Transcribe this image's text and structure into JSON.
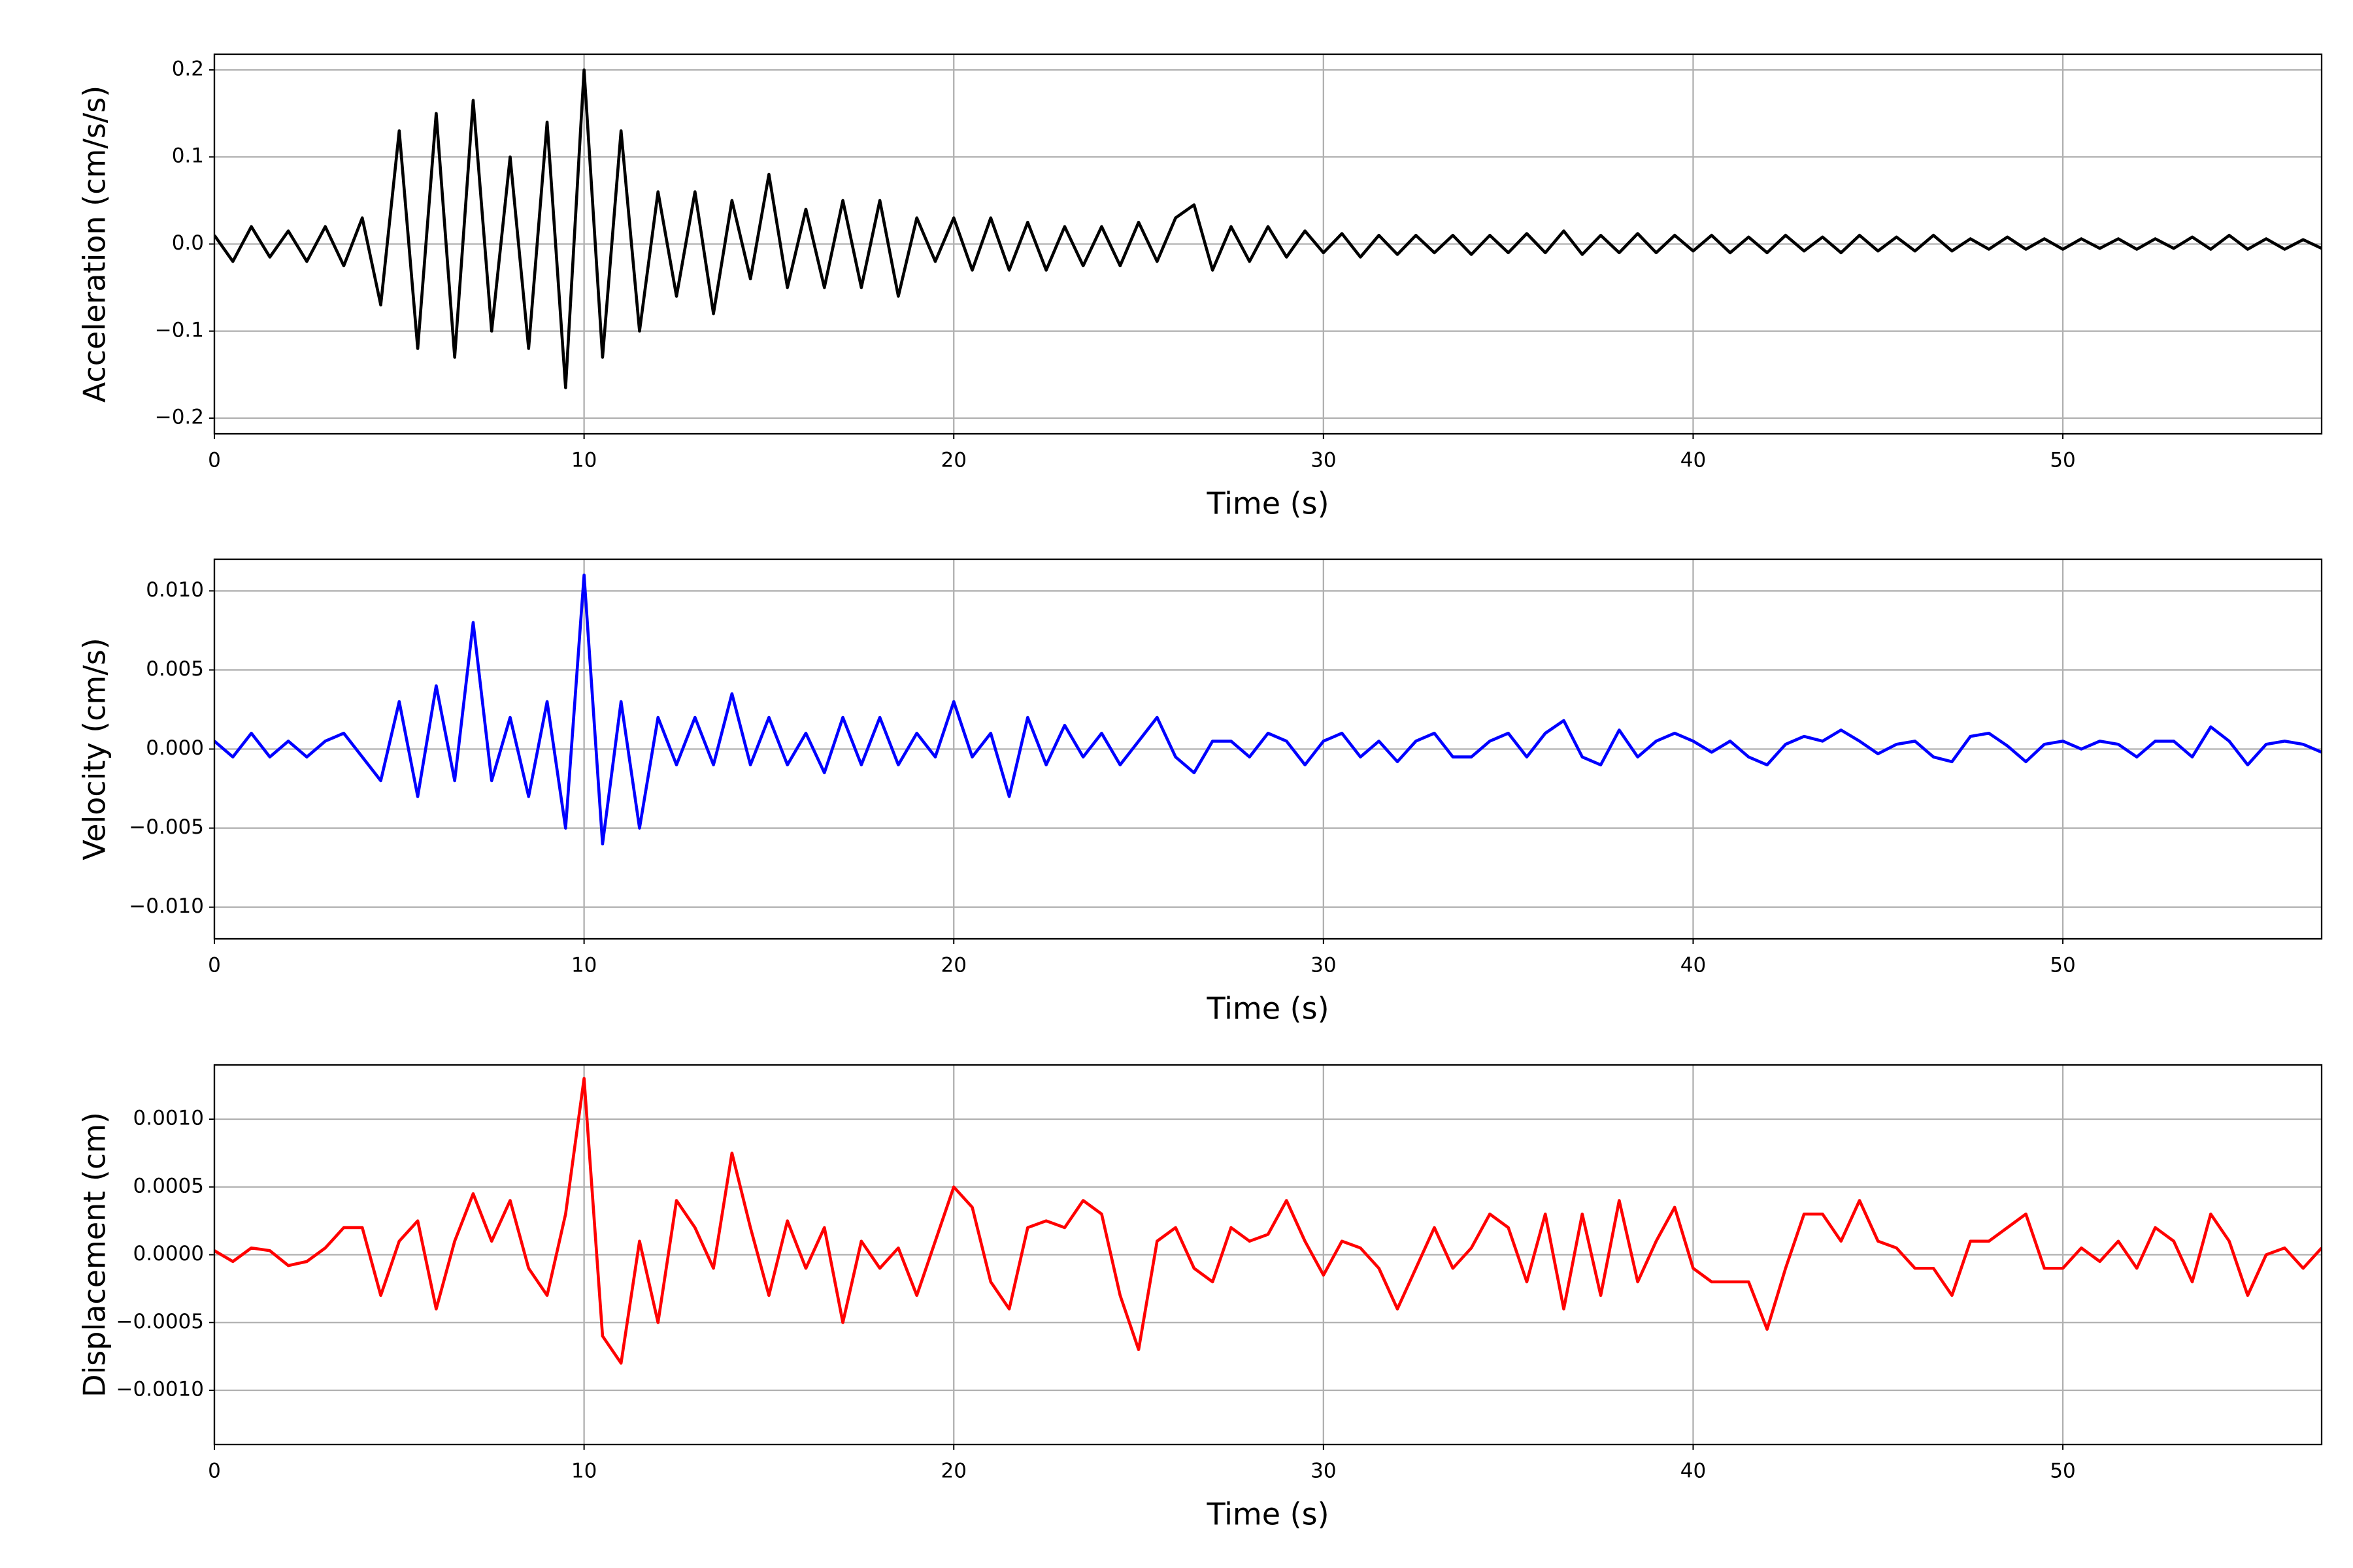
{
  "chart_data": [
    {
      "type": "line",
      "x_label": "Time (s)",
      "y_label": "Acceleration (cm/s/s)",
      "grid": true,
      "xlim": [
        0,
        57
      ],
      "xticks": [
        0,
        10,
        20,
        30,
        40,
        50
      ],
      "ylim": [
        -0.218,
        0.218
      ],
      "yticks": [
        {
          "value": -0.2,
          "label": "−0.2"
        },
        {
          "value": -0.1,
          "label": "−0.1"
        },
        {
          "value": 0,
          "label": "0.0"
        },
        {
          "value": 0.1,
          "label": "0.1"
        },
        {
          "value": 0.2,
          "label": "0.2"
        }
      ],
      "x": [
        0,
        0.5,
        1,
        1.5,
        2,
        2.5,
        3,
        3.5,
        4,
        4.5,
        5,
        5.5,
        6,
        6.5,
        7,
        7.5,
        8,
        8.5,
        9,
        9.5,
        10,
        10.5,
        11,
        11.5,
        12,
        12.5,
        13,
        13.5,
        14,
        14.5,
        15,
        15.5,
        16,
        16.5,
        17,
        17.5,
        18,
        18.5,
        19,
        19.5,
        20,
        20.5,
        21,
        21.5,
        22,
        22.5,
        23,
        23.5,
        24,
        24.5,
        25,
        25.5,
        26,
        26.5,
        27,
        27.5,
        28,
        28.5,
        29,
        29.5,
        30,
        30.5,
        31,
        31.5,
        32,
        32.5,
        33,
        33.5,
        34,
        34.5,
        35,
        35.5,
        36,
        36.5,
        37,
        37.5,
        38,
        38.5,
        39,
        39.5,
        40,
        40.5,
        41,
        41.5,
        42,
        42.5,
        43,
        43.5,
        44,
        44.5,
        45,
        45.5,
        46,
        46.5,
        47,
        47.5,
        48,
        48.5,
        49,
        49.5,
        50,
        50.5,
        51,
        51.5,
        52,
        52.5,
        53,
        53.5,
        54,
        54.5,
        55,
        55.5,
        56,
        56.5,
        57
      ],
      "series": [
        {
          "color": "#000000",
          "values": [
            0.01,
            -0.02,
            0.02,
            -0.015,
            0.015,
            -0.02,
            0.02,
            -0.025,
            0.03,
            -0.07,
            0.13,
            -0.12,
            0.15,
            -0.13,
            0.165,
            -0.1,
            0.1,
            -0.12,
            0.14,
            -0.165,
            0.2,
            -0.13,
            0.13,
            -0.1,
            0.06,
            -0.06,
            0.06,
            -0.08,
            0.05,
            -0.04,
            0.08,
            -0.05,
            0.04,
            -0.05,
            0.05,
            -0.05,
            0.05,
            -0.06,
            0.03,
            -0.02,
            0.03,
            -0.03,
            0.03,
            -0.03,
            0.025,
            -0.03,
            0.02,
            -0.025,
            0.02,
            -0.025,
            0.025,
            -0.02,
            0.03,
            0.045,
            -0.03,
            0.02,
            -0.02,
            0.02,
            -0.015,
            0.015,
            -0.01,
            0.012,
            -0.015,
            0.01,
            -0.012,
            0.01,
            -0.01,
            0.01,
            -0.012,
            0.01,
            -0.01,
            0.012,
            -0.01,
            0.015,
            -0.012,
            0.01,
            -0.01,
            0.012,
            -0.01,
            0.01,
            -0.008,
            0.01,
            -0.01,
            0.008,
            -0.01,
            0.01,
            -0.008,
            0.008,
            -0.01,
            0.01,
            -0.008,
            0.008,
            -0.008,
            0.01,
            -0.008,
            0.006,
            -0.006,
            0.008,
            -0.006,
            0.006,
            -0.006,
            0.006,
            -0.005,
            0.006,
            -0.006,
            0.006,
            -0.005,
            0.008,
            -0.006,
            0.01,
            -0.006,
            0.006,
            -0.006,
            0.005,
            -0.005
          ]
        }
      ]
    },
    {
      "type": "line",
      "x_label": "Time (s)",
      "y_label": "Velocity (cm/s)",
      "grid": true,
      "xlim": [
        0,
        57
      ],
      "xticks": [
        0,
        10,
        20,
        30,
        40,
        50
      ],
      "ylim": [
        -0.012,
        0.012
      ],
      "yticks": [
        {
          "value": -0.01,
          "label": "−0.010"
        },
        {
          "value": -0.005,
          "label": "−0.005"
        },
        {
          "value": 0,
          "label": "0.000"
        },
        {
          "value": 0.005,
          "label": "0.005"
        },
        {
          "value": 0.01,
          "label": "0.010"
        }
      ],
      "x": [
        0,
        0.5,
        1,
        1.5,
        2,
        2.5,
        3,
        3.5,
        4,
        4.5,
        5,
        5.5,
        6,
        6.5,
        7,
        7.5,
        8,
        8.5,
        9,
        9.5,
        10,
        10.5,
        11,
        11.5,
        12,
        12.5,
        13,
        13.5,
        14,
        14.5,
        15,
        15.5,
        16,
        16.5,
        17,
        17.5,
        18,
        18.5,
        19,
        19.5,
        20,
        20.5,
        21,
        21.5,
        22,
        22.5,
        23,
        23.5,
        24,
        24.5,
        25,
        25.5,
        26,
        26.5,
        27,
        27.5,
        28,
        28.5,
        29,
        29.5,
        30,
        30.5,
        31,
        31.5,
        32,
        32.5,
        33,
        33.5,
        34,
        34.5,
        35,
        35.5,
        36,
        36.5,
        37,
        37.5,
        38,
        38.5,
        39,
        39.5,
        40,
        40.5,
        41,
        41.5,
        42,
        42.5,
        43,
        43.5,
        44,
        44.5,
        45,
        45.5,
        46,
        46.5,
        47,
        47.5,
        48,
        48.5,
        49,
        49.5,
        50,
        50.5,
        51,
        51.5,
        52,
        52.5,
        53,
        53.5,
        54,
        54.5,
        55,
        55.5,
        56,
        56.5,
        57
      ],
      "series": [
        {
          "color": "#0000ff",
          "values": [
            0.0005,
            -0.0005,
            0.001,
            -0.0005,
            0.0005,
            -0.0005,
            0.0005,
            0.001,
            -0.0005,
            -0.002,
            0.003,
            -0.003,
            0.004,
            -0.002,
            0.008,
            -0.002,
            0.002,
            -0.003,
            0.003,
            -0.005,
            0.011,
            -0.006,
            0.003,
            -0.005,
            0.002,
            -0.001,
            0.002,
            -0.001,
            0.0035,
            -0.001,
            0.002,
            -0.001,
            0.001,
            -0.0015,
            0.002,
            -0.001,
            0.002,
            -0.001,
            0.001,
            -0.0005,
            0.003,
            -0.0005,
            0.001,
            -0.003,
            0.002,
            -0.001,
            0.0015,
            -0.0005,
            0.001,
            -0.001,
            0.0005,
            0.002,
            -0.0005,
            -0.0015,
            0.0005,
            0.0005,
            -0.0005,
            0.001,
            0.0005,
            -0.001,
            0.0005,
            0.001,
            -0.0005,
            0.0005,
            -0.0008,
            0.0005,
            0.001,
            -0.0005,
            -0.0005,
            0.0005,
            0.001,
            -0.0005,
            0.001,
            0.0018,
            -0.0005,
            -0.001,
            0.0012,
            -0.0005,
            0.0005,
            0.001,
            0.0005,
            -0.0002,
            0.0005,
            -0.0005,
            -0.001,
            0.0003,
            0.0008,
            0.0005,
            0.0012,
            0.0005,
            -0.0003,
            0.0003,
            0.0005,
            -0.0005,
            -0.0008,
            0.0008,
            0.001,
            0.0002,
            -0.0008,
            0.0003,
            0.0005,
            0,
            0.0005,
            0.0003,
            -0.0005,
            0.0005,
            0.0005,
            -0.0005,
            0.0014,
            0.0005,
            -0.001,
            0.0003,
            0.0005,
            0.0003,
            -0.0002
          ]
        }
      ]
    },
    {
      "type": "line",
      "x_label": "Time (s)",
      "y_label": "Displacement (cm)",
      "grid": true,
      "xlim": [
        0,
        57
      ],
      "xticks": [
        0,
        10,
        20,
        30,
        40,
        50
      ],
      "ylim": [
        -0.0014,
        0.0014
      ],
      "yticks": [
        {
          "value": -0.001,
          "label": "−0.0010"
        },
        {
          "value": -0.0005,
          "label": "−0.0005"
        },
        {
          "value": 0,
          "label": "0.0000"
        },
        {
          "value": 0.0005,
          "label": "0.0005"
        },
        {
          "value": 0.001,
          "label": "0.0010"
        }
      ],
      "x": [
        0,
        0.5,
        1,
        1.5,
        2,
        2.5,
        3,
        3.5,
        4,
        4.5,
        5,
        5.5,
        6,
        6.5,
        7,
        7.5,
        8,
        8.5,
        9,
        9.5,
        10,
        10.5,
        11,
        11.5,
        12,
        12.5,
        13,
        13.5,
        14,
        14.5,
        15,
        15.5,
        16,
        16.5,
        17,
        17.5,
        18,
        18.5,
        19,
        19.5,
        20,
        20.5,
        21,
        21.5,
        22,
        22.5,
        23,
        23.5,
        24,
        24.5,
        25,
        25.5,
        26,
        26.5,
        27,
        27.5,
        28,
        28.5,
        29,
        29.5,
        30,
        30.5,
        31,
        31.5,
        32,
        32.5,
        33,
        33.5,
        34,
        34.5,
        35,
        35.5,
        36,
        36.5,
        37,
        37.5,
        38,
        38.5,
        39,
        39.5,
        40,
        40.5,
        41,
        41.5,
        42,
        42.5,
        43,
        43.5,
        44,
        44.5,
        45,
        45.5,
        46,
        46.5,
        47,
        47.5,
        48,
        48.5,
        49,
        49.5,
        50,
        50.5,
        51,
        51.5,
        52,
        52.5,
        53,
        53.5,
        54,
        54.5,
        55,
        55.5,
        56,
        56.5,
        57
      ],
      "series": [
        {
          "color": "#ff0000",
          "values": [
            3e-05,
            -5e-05,
            5e-05,
            3e-05,
            -8e-05,
            -5e-05,
            5e-05,
            0.0002,
            0.0002,
            -0.0003,
            0.0001,
            0.00025,
            -0.0004,
            0.0001,
            0.00045,
            0.0001,
            0.0004,
            -0.0001,
            -0.0003,
            0.0003,
            0.0013,
            -0.0006,
            -0.0008,
            0.0001,
            -0.0005,
            0.0004,
            0.0002,
            -0.0001,
            0.00075,
            0.0002,
            -0.0003,
            0.00025,
            -0.0001,
            0.0002,
            -0.0005,
            0.0001,
            -0.0001,
            5e-05,
            -0.0003,
            0.0001,
            0.0005,
            0.00035,
            -0.0002,
            -0.0004,
            0.0002,
            0.00025,
            0.0002,
            0.0004,
            0.0003,
            -0.0003,
            -0.0007,
            0.0001,
            0.0002,
            -0.0001,
            -0.0002,
            0.0002,
            0.0001,
            0.00015,
            0.0004,
            0.0001,
            -0.00015,
            0.0001,
            5e-05,
            -0.0001,
            -0.0004,
            -0.0001,
            0.0002,
            -0.0001,
            5e-05,
            0.0003,
            0.0002,
            -0.0002,
            0.0003,
            -0.0004,
            0.0003,
            -0.0003,
            0.0004,
            -0.0002,
            0.0001,
            0.00035,
            -0.0001,
            -0.0002,
            -0.0002,
            -0.0002,
            -0.00055,
            -0.0001,
            0.0003,
            0.0003,
            0.0001,
            0.0004,
            0.0001,
            5e-05,
            -0.0001,
            -0.0001,
            -0.0003,
            0.0001,
            0.0001,
            0.0002,
            0.0003,
            -0.0001,
            -0.0001,
            5e-05,
            -5e-05,
            0.0001,
            -0.0001,
            0.0002,
            0.0001,
            -0.0002,
            0.0003,
            0.0001,
            -0.0003,
            0,
            5e-05,
            -0.0001,
            5e-05
          ]
        }
      ]
    }
  ]
}
